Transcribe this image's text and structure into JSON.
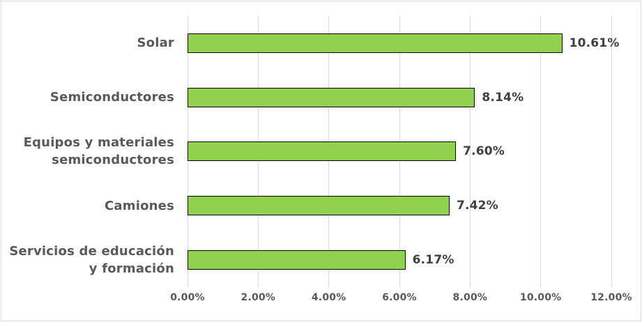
{
  "chart_data": {
    "type": "bar",
    "orientation": "horizontal",
    "title": "",
    "categories": [
      "Solar",
      "Semiconductores",
      "Equipos y materiales semiconductores",
      "Camiones",
      "Servicios de educación y formación"
    ],
    "category_display": [
      "Solar",
      "Semiconductores",
      "Equipos y materiales\nsemiconductores",
      "Camiones",
      "Servicios de educación\ny formación"
    ],
    "values": [
      10.61,
      8.14,
      7.6,
      7.42,
      6.17
    ],
    "data_labels": [
      "10.61%",
      "8.14%",
      "7.60%",
      "7.42%",
      "6.17%"
    ],
    "x_ticks": [
      "0.00%",
      "2.00%",
      "4.00%",
      "6.00%",
      "8.00%",
      "10.00%",
      "12.00%"
    ],
    "xlim": [
      0,
      12
    ],
    "grid": true,
    "legend": false,
    "colors": {
      "bar_fill": "#92D050",
      "bar_border": "#000000",
      "gridline": "#D9D9D9",
      "chart_border": "#D9D9D9",
      "category_label": "#595959",
      "axis_label": "#595959",
      "data_label": "#404040",
      "background": "#FFFFFF"
    }
  }
}
